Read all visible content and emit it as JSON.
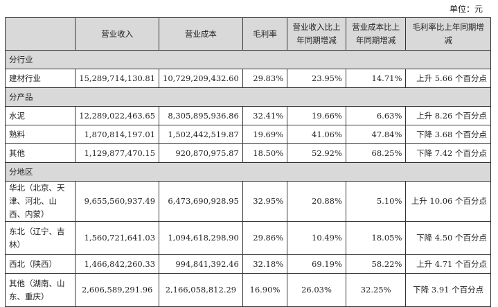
{
  "unit_label": "单位：元",
  "headers": [
    "",
    "营业收入",
    "营业成本",
    "毛利率",
    "营业收入比上年同期增减",
    "营业成本比上年同期增减",
    "毛利率比上年同期增减"
  ],
  "sections": [
    {
      "title": "分行业",
      "rows": [
        [
          "建材行业",
          "15,289,714,130.81",
          "10,729,209,432.60",
          "29.83%",
          "23.95%",
          "14.71%",
          "上升 5.66 个百分点"
        ]
      ]
    },
    {
      "title": "分产品",
      "rows": [
        [
          "水泥",
          "12,289,022,463.65",
          "8,305,895,936.86",
          "32.41%",
          "19.66%",
          "6.63%",
          "上升 8.26 个百分点"
        ],
        [
          "熟料",
          "1,870,814,197.01",
          "1,502,442,519.87",
          "19.69%",
          "41.06%",
          "47.84%",
          "下降 3.68 个百分点"
        ],
        [
          "其他",
          "1,129,877,470.15",
          "920,870,975.87",
          "18.50%",
          "52.92%",
          "68.25%",
          "下降 7.42 个百分点"
        ]
      ]
    },
    {
      "title": "分地区",
      "rows": [
        [
          "华北（北京、天津、河北、山西、内蒙）",
          "9,655,560,937.49",
          "6,473,690,928.95",
          "32.95%",
          "20.88%",
          "5.10%",
          "上升 10.06 个百分点"
        ],
        [
          "东北（辽宁、吉林）",
          "1,560,721,641.03",
          "1,094,618,298.90",
          "29.86%",
          "10.49%",
          "18.05%",
          "下降 4.50 个百分点"
        ],
        [
          "西北（陕西）",
          "1,466,842,260.33",
          "994,841,392.46",
          "32.18%",
          "69.19%",
          "58.22%",
          "上升 4.71 个百分点"
        ],
        [
          "其他（湖南、山东、重庆）",
          "2,606,589,291.96",
          "2,166,058,812.29",
          "16.90%",
          "26.03%",
          "32.25%",
          "下降 3.91 个百分点"
        ]
      ]
    }
  ]
}
